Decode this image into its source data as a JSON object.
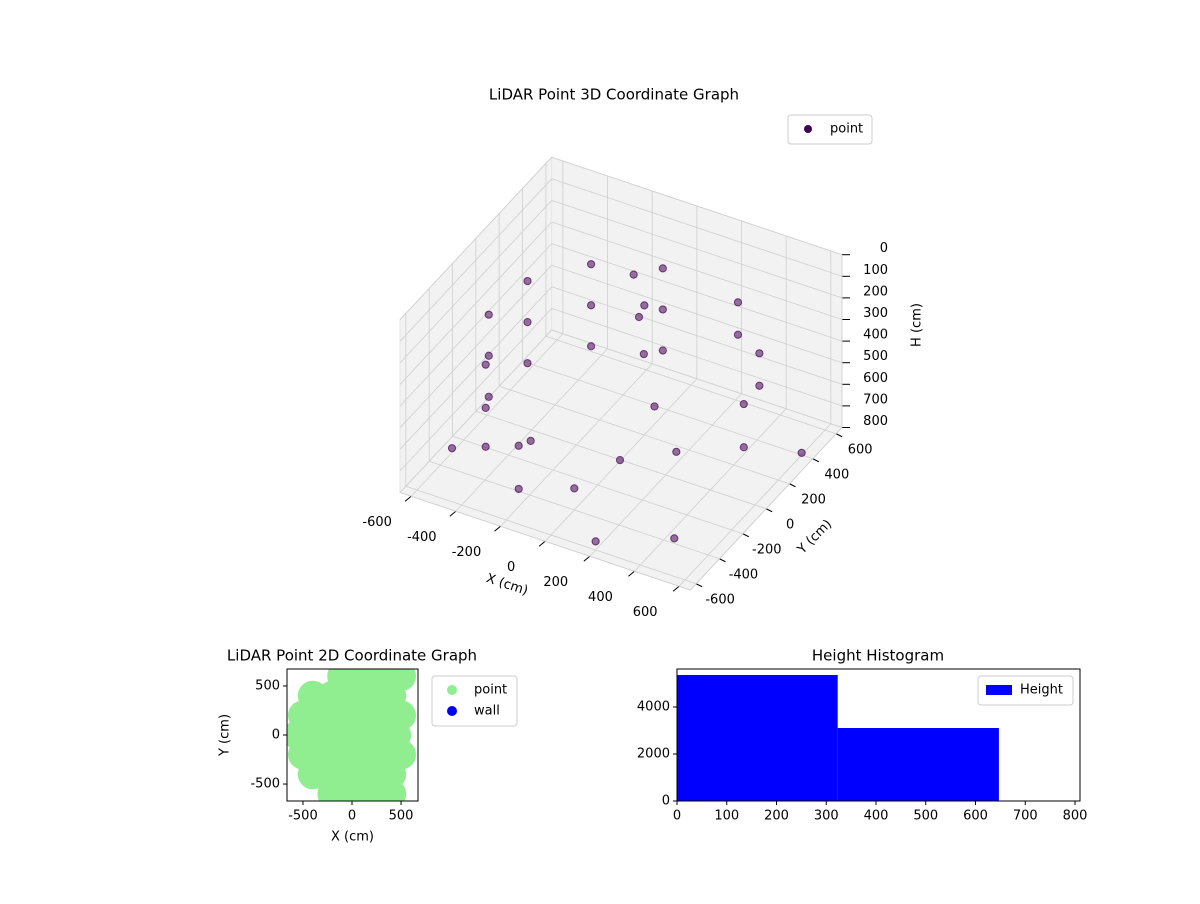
{
  "chart_data": [
    {
      "type": "scatter3d",
      "title": "LiDAR Point 3D Coordinate Graph",
      "xlabel": "X (cm)",
      "ylabel": "Y (cm)",
      "zlabel": "H (cm)",
      "xlim": [
        -650,
        650
      ],
      "ylim": [
        -650,
        650
      ],
      "zlim": [
        800,
        0
      ],
      "xticks": [
        -600,
        -400,
        -200,
        0,
        200,
        400,
        600
      ],
      "yticks": [
        -600,
        -400,
        -200,
        0,
        200,
        400,
        600
      ],
      "zticks": [
        0,
        100,
        200,
        300,
        400,
        500,
        600,
        700,
        800
      ],
      "grid": true,
      "legend": "upper right",
      "series": [
        {
          "name": "point",
          "color": "#440154",
          "x": [
            -96,
            -96,
            -96,
            -354,
            -354,
            -354,
            -517,
            -517,
            -517,
            -542,
            -542,
            -542,
            -421,
            -421,
            -421,
            -188,
            -188,
            275,
            275,
            476,
            476,
            550,
            550,
            -100,
            0,
            -50,
            50,
            -600,
            200,
            500,
            600,
            0,
            100,
            300,
            -300,
            150
          ],
          "y": [
            542,
            542,
            542,
            421,
            421,
            421,
            188,
            188,
            188,
            -96,
            -96,
            -96,
            -354,
            -354,
            -354,
            -517,
            -517,
            476,
            476,
            275,
            275,
            0,
            0,
            300,
            200,
            250,
            100,
            -300,
            -600,
            -500,
            400,
            -400,
            -200,
            -100,
            -200,
            0
          ],
          "values": [
            260,
            450,
            640,
            260,
            450,
            640,
            260,
            450,
            640,
            260,
            450,
            640,
            300,
            500,
            680,
            500,
            700,
            250,
            400,
            300,
            450,
            350,
            550,
            150,
            200,
            300,
            350,
            780,
            760,
            700,
            790,
            700,
            650,
            600,
            700,
            500
          ]
        }
      ]
    },
    {
      "type": "scatter",
      "title": "LiDAR Point 2D Coordinate Graph",
      "xlabel": "X (cm)",
      "ylabel": "Y (cm)",
      "xlim": [
        -663,
        673
      ],
      "ylim": [
        -673,
        673
      ],
      "xticks": [
        -500,
        0,
        500
      ],
      "yticks": [
        -500,
        0,
        500
      ],
      "legend": "outside right",
      "series": [
        {
          "name": "point",
          "color": "#90ee90",
          "x": [
            -100,
            100,
            300,
            500,
            -400,
            -200,
            0,
            200,
            400,
            -500,
            -300,
            -100,
            100,
            300,
            500,
            -550,
            -350,
            -150,
            50,
            250,
            450,
            -500,
            -300,
            -100,
            100,
            300,
            500,
            -400,
            -200,
            0,
            200,
            400,
            -200,
            0,
            200,
            400
          ],
          "values": [
            600,
            600,
            600,
            600,
            400,
            400,
            400,
            400,
            400,
            200,
            200,
            200,
            200,
            200,
            200,
            0,
            0,
            0,
            0,
            0,
            0,
            -200,
            -200,
            -200,
            -200,
            -200,
            -200,
            -400,
            -400,
            -400,
            -400,
            -400,
            -600,
            -600,
            -600,
            -600
          ]
        },
        {
          "name": "wall",
          "color": "#0000ff",
          "x": [],
          "values": []
        }
      ]
    },
    {
      "type": "histogram",
      "title": "Height Histogram",
      "bins": [
        0,
        323,
        647
      ],
      "values": [
        5362,
        3106
      ],
      "series_name": "Height",
      "color": "#0000ff",
      "xlim": [
        0,
        810
      ],
      "ylim": [
        0,
        5617
      ],
      "xticks": [
        0,
        100,
        200,
        300,
        400,
        500,
        600,
        700,
        800
      ],
      "yticks": [
        0,
        2000,
        4000
      ],
      "legend": "upper right"
    }
  ]
}
